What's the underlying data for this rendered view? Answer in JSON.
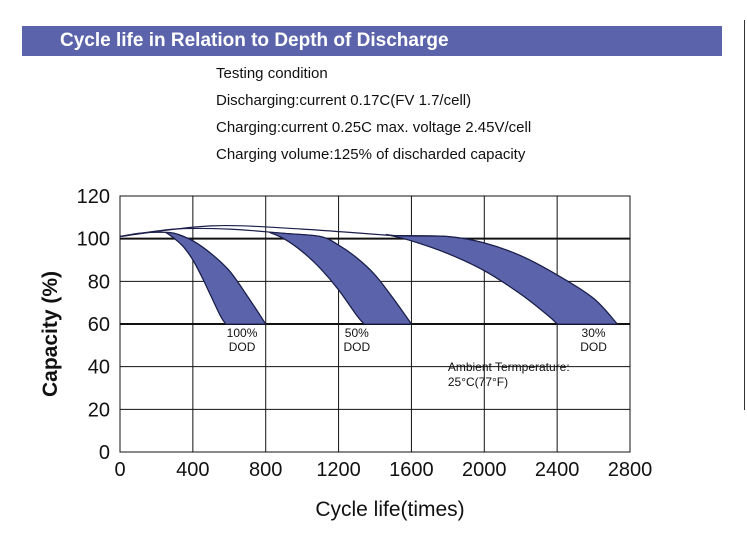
{
  "header": {
    "title": "Cycle life in Relation to Depth of Discharge"
  },
  "testing": {
    "lines": [
      "Testing condition",
      "Discharging:current 0.17C(FV 1.7/cell)",
      "Charging:current 0.25C max. voltage 2.45V/cell",
      "Charging volume:125% of discharded capacity"
    ]
  },
  "chart_data": {
    "type": "area",
    "title": "Cycle life in Relation to Depth of Discharge",
    "xlabel": "Cycle life(times)",
    "ylabel": "Capacity (%)",
    "xlim": [
      0,
      2800
    ],
    "ylim": [
      0,
      120
    ],
    "xticks": [
      0,
      400,
      800,
      1200,
      1600,
      2000,
      2400,
      2800
    ],
    "yticks": [
      0,
      20,
      40,
      60,
      80,
      100,
      120
    ],
    "xtick_labels": [
      "0",
      "400",
      "800",
      "1200",
      "1600",
      "2000",
      "2400",
      "2800"
    ],
    "ytick_labels": [
      "0",
      "20",
      "40",
      "60",
      "80",
      "100",
      "120"
    ],
    "grid": true,
    "fill_color": "#5b63ab",
    "series": [
      {
        "name": "100% DOD",
        "label_lines": [
          "100%",
          "DOD"
        ],
        "label_at": [
          670,
          54
        ],
        "upper": [
          [
            0,
            101
          ],
          [
            100,
            102.5
          ],
          [
            200,
            103
          ],
          [
            300,
            102.5
          ],
          [
            400,
            99
          ],
          [
            500,
            93
          ],
          [
            600,
            85
          ],
          [
            700,
            73
          ],
          [
            800,
            60
          ]
        ],
        "lower": [
          [
            250,
            103
          ],
          [
            300,
            100
          ],
          [
            350,
            96
          ],
          [
            400,
            90
          ],
          [
            450,
            82
          ],
          [
            500,
            73
          ],
          [
            550,
            64
          ],
          [
            580,
            60
          ]
        ]
      },
      {
        "name": "50% DOD",
        "label_lines": [
          "50%",
          "DOD"
        ],
        "label_at": [
          1300,
          54
        ],
        "upper": [
          [
            0,
            101
          ],
          [
            300,
            104.5
          ],
          [
            600,
            104.5
          ],
          [
            900,
            102.5
          ],
          [
            1100,
            101
          ],
          [
            1200,
            97
          ],
          [
            1300,
            91
          ],
          [
            1400,
            83
          ],
          [
            1500,
            72
          ],
          [
            1600,
            60
          ]
        ],
        "lower": [
          [
            820,
            103
          ],
          [
            900,
            100
          ],
          [
            1000,
            94
          ],
          [
            1100,
            86
          ],
          [
            1200,
            76
          ],
          [
            1300,
            64
          ],
          [
            1340,
            60
          ]
        ]
      },
      {
        "name": "30% DOD",
        "label_lines": [
          "30%",
          "DOD"
        ],
        "label_at": [
          2600,
          54
        ],
        "upper": [
          [
            0,
            101
          ],
          [
            500,
            106
          ],
          [
            1000,
            104.5
          ],
          [
            1500,
            101.5
          ],
          [
            1800,
            101
          ],
          [
            2000,
            98
          ],
          [
            2200,
            92
          ],
          [
            2400,
            83
          ],
          [
            2600,
            72
          ],
          [
            2730,
            60
          ]
        ],
        "lower": [
          [
            1460,
            102
          ],
          [
            1600,
            99
          ],
          [
            1800,
            93
          ],
          [
            2000,
            85
          ],
          [
            2200,
            74
          ],
          [
            2350,
            64
          ],
          [
            2400,
            60
          ]
        ]
      }
    ],
    "annotation": {
      "lines": [
        "Ambient Termperature:",
        "25°C(77°F)"
      ],
      "at": [
        1800,
        38
      ]
    }
  }
}
